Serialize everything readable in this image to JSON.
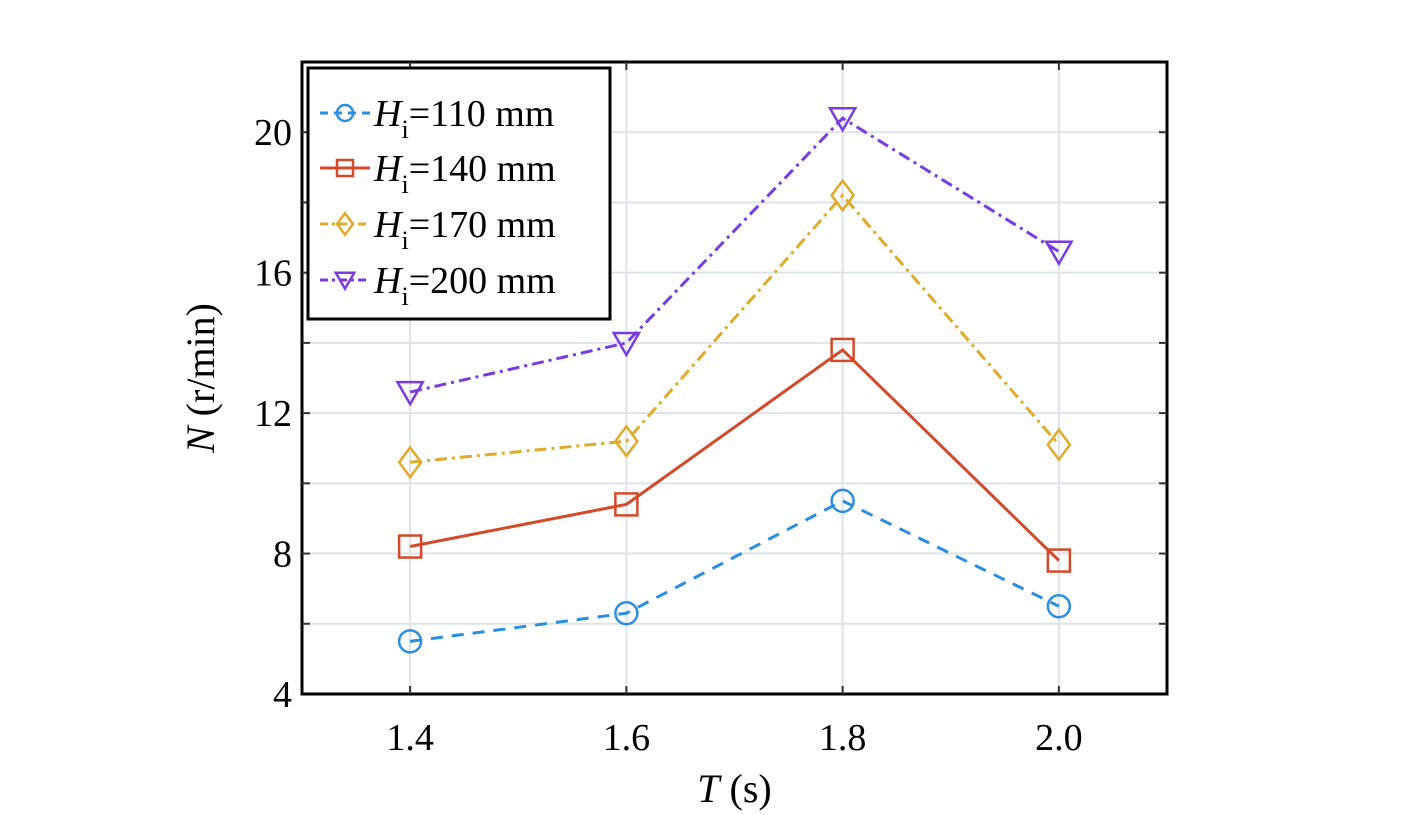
{
  "chart_data": {
    "type": "line",
    "x_values": [
      1.4,
      1.6,
      1.8,
      2.0
    ],
    "x_ticks": [
      "1.4",
      "1.6",
      "1.8",
      "2.0"
    ],
    "y_ticks": [
      "4",
      "8",
      "12",
      "16",
      "20"
    ],
    "xlim": [
      1.3,
      2.1
    ],
    "ylim": [
      4,
      22
    ],
    "xlabel": {
      "symbol": "T",
      "unit": " (s)"
    },
    "ylabel": {
      "symbol": "N",
      "unit": " (r/min)"
    },
    "grid": true,
    "legend_position": "top-left",
    "series": [
      {
        "name_symbol": "H",
        "name_sub": "i",
        "name_rest": "=110 mm",
        "values": [
          5.5,
          6.3,
          9.5,
          6.5
        ],
        "color": "#2b8ee0",
        "marker": "circle",
        "dash": "12,9"
      },
      {
        "name_symbol": "H",
        "name_sub": "i",
        "name_rest": "=140 mm",
        "values": [
          8.2,
          9.4,
          13.8,
          7.8
        ],
        "color": "#d24a2a",
        "marker": "square",
        "dash": ""
      },
      {
        "name_symbol": "H",
        "name_sub": "i",
        "name_rest": "=170 mm",
        "values": [
          10.6,
          11.2,
          18.2,
          11.1
        ],
        "color": "#e0aa2a",
        "marker": "diamond",
        "dash": "12,5,3,5"
      },
      {
        "name_symbol": "H",
        "name_sub": "i",
        "name_rest": "=200 mm",
        "values": [
          12.6,
          14.0,
          20.4,
          16.6
        ],
        "color": "#7a3be0",
        "marker": "triangle-down",
        "dash": "12,5,3,5"
      }
    ]
  }
}
